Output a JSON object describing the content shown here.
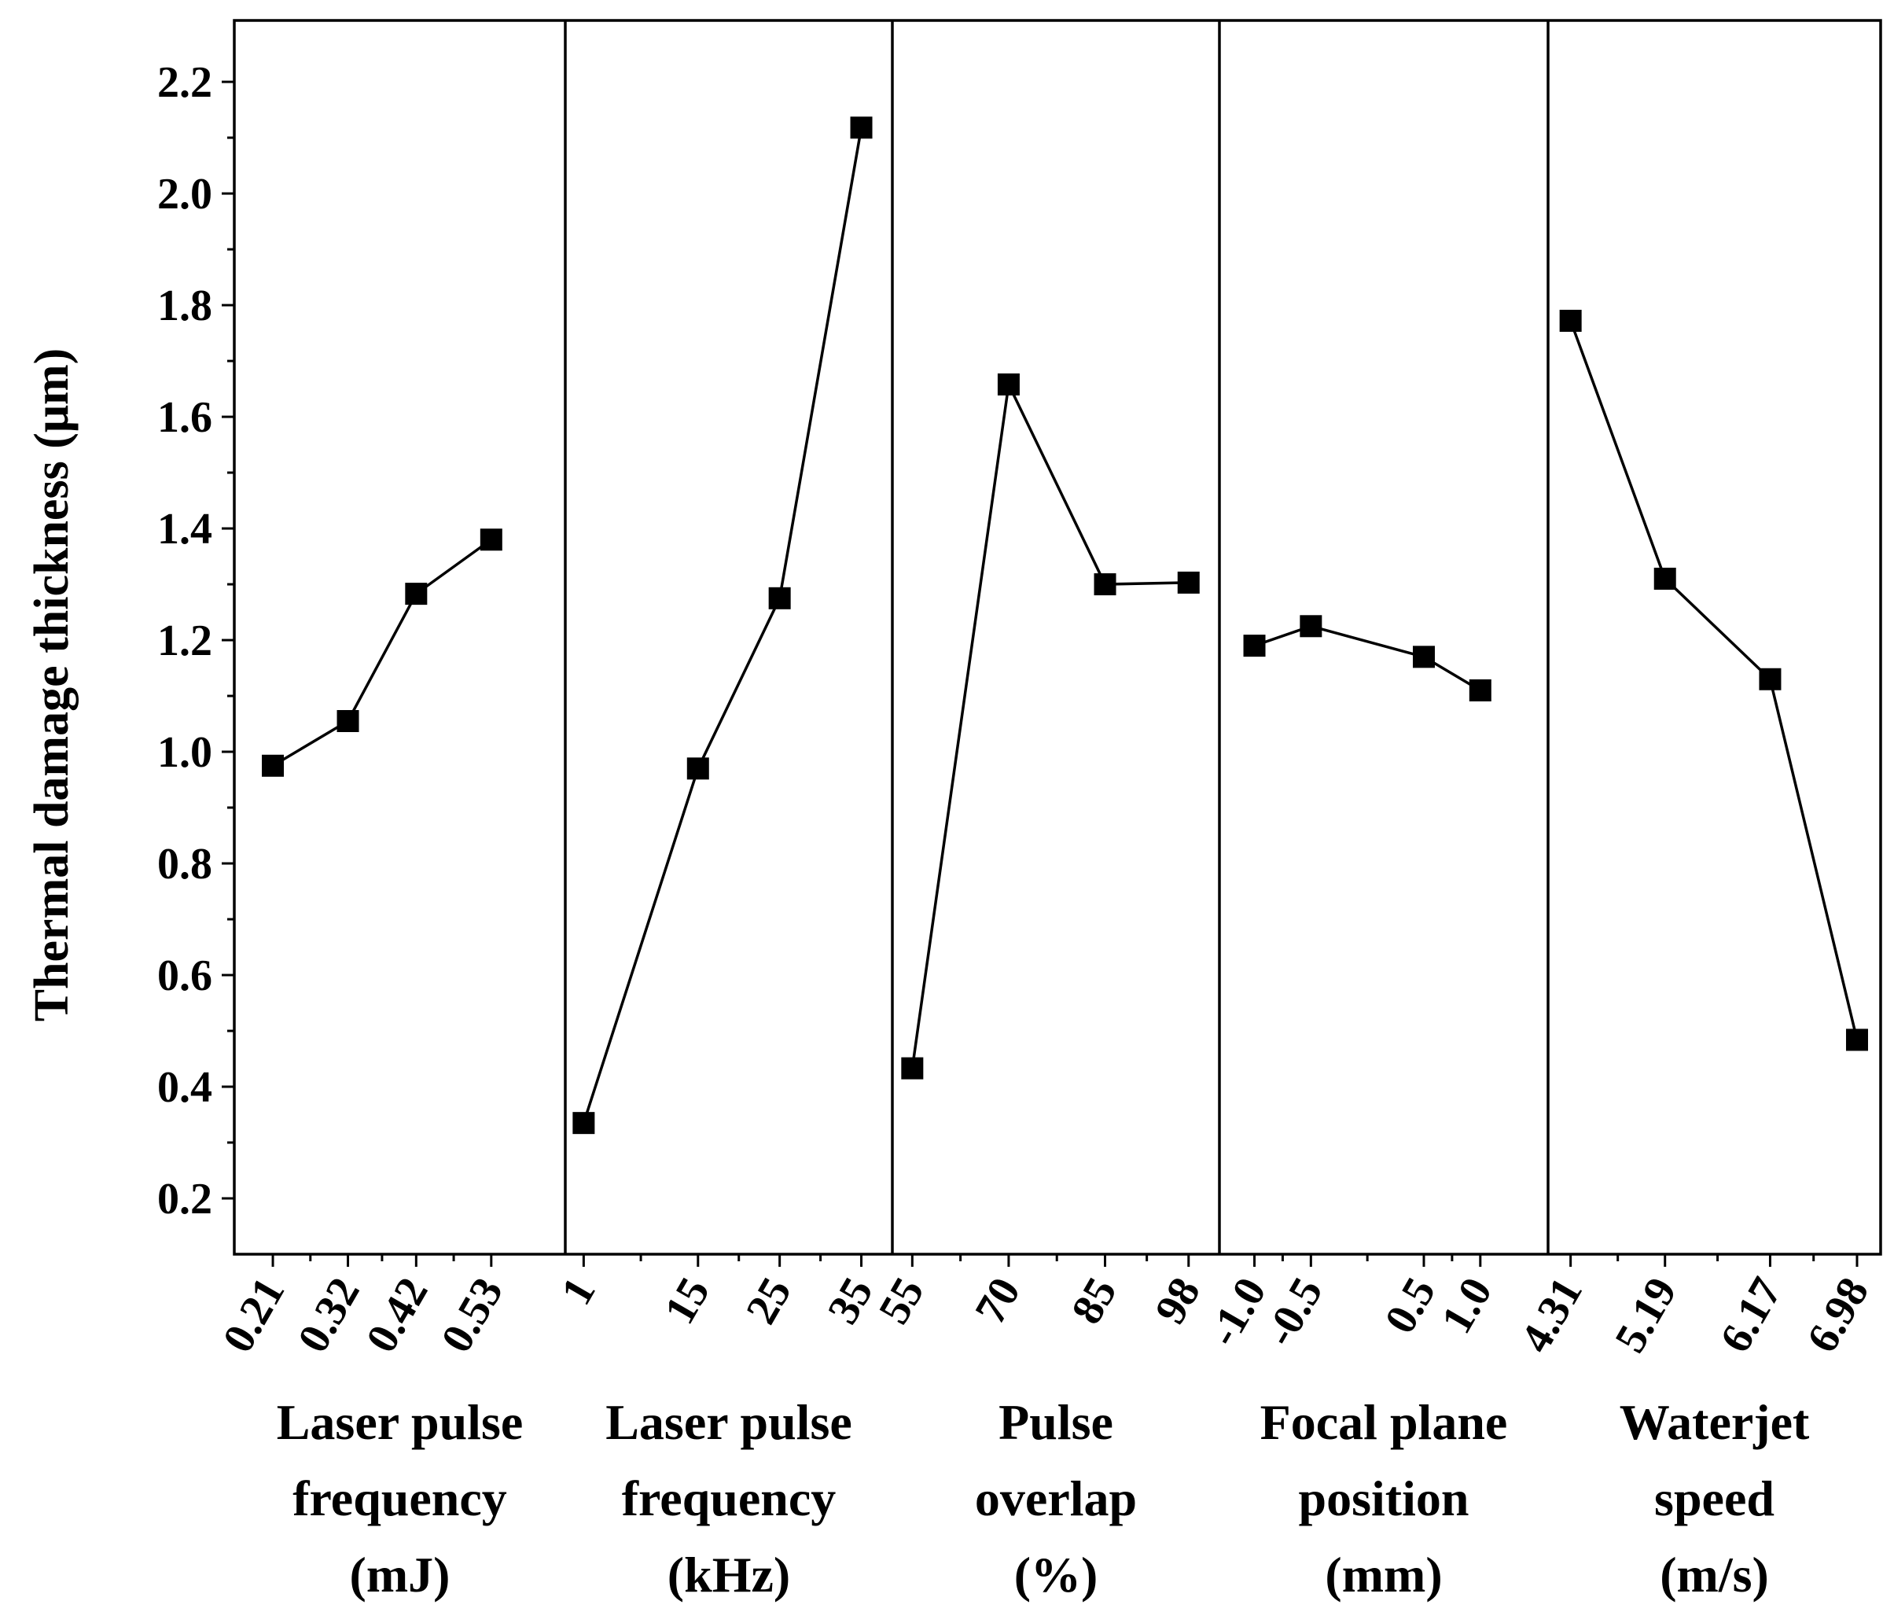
{
  "chart_data": {
    "type": "line",
    "title": "",
    "ylabel": "Thermal damage thickness (μm)",
    "ylim": [
      0.1,
      2.31
    ],
    "yticks": [
      0.2,
      0.4,
      0.6,
      0.8,
      1.0,
      1.2,
      1.4,
      1.6,
      1.8,
      2.0,
      2.2
    ],
    "ytick_labels": [
      "0.2",
      "0.4",
      "0.6",
      "0.8",
      "1.0",
      "1.2",
      "1.4",
      "1.6",
      "1.8",
      "2.0",
      "2.2"
    ],
    "marker": "square",
    "color": "#000000",
    "panels": [
      {
        "name": "laser-pulse-energy",
        "xlabel_lines": [
          "Laser pulse",
          "frequency",
          "(mJ)"
        ],
        "xlim": [
          0.1535,
          0.6385
        ],
        "x": [
          0.21,
          0.32,
          0.42,
          0.53
        ],
        "tick_labels": [
          "0.21",
          "0.32",
          "0.42",
          "0.53"
        ],
        "values": [
          0.975,
          1.055,
          1.283,
          1.38
        ]
      },
      {
        "name": "laser-pulse-frequency",
        "xlabel_lines": [
          "Laser pulse",
          "frequency",
          "(kHz)"
        ],
        "xlim": [
          -1.25,
          38.8
        ],
        "x": [
          1,
          15,
          25,
          35
        ],
        "tick_labels": [
          "1",
          "15",
          "25",
          "35"
        ],
        "values": [
          0.335,
          0.97,
          1.275,
          2.118
        ]
      },
      {
        "name": "pulse-overlap",
        "xlabel_lines": [
          "Pulse",
          "overlap",
          "(%)"
        ],
        "xlim": [
          51.9,
          102.8
        ],
        "x": [
          55,
          70,
          85,
          98
        ],
        "tick_labels": [
          "55",
          "70",
          "85",
          "98"
        ],
        "values": [
          0.433,
          1.658,
          1.3,
          1.303
        ]
      },
      {
        "name": "focal-plane-position",
        "xlabel_lines": [
          "Focal plane",
          "position",
          "(mm)"
        ],
        "xlim": [
          -1.31,
          1.6
        ],
        "x": [
          -1.0,
          -0.5,
          0.5,
          1.0
        ],
        "tick_labels": [
          "-1.0",
          "-0.5",
          "0.5",
          "1.0"
        ],
        "values": [
          1.19,
          1.225,
          1.17,
          1.11
        ]
      },
      {
        "name": "waterjet-speed",
        "xlabel_lines": [
          "Waterjet",
          "speed",
          "(m/s)"
        ],
        "xlim": [
          4.1,
          7.2
        ],
        "x": [
          4.31,
          5.19,
          6.17,
          6.98
        ],
        "tick_labels": [
          "4.31",
          "5.19",
          "6.17",
          "6.98"
        ],
        "values": [
          1.772,
          1.31,
          1.13,
          0.484
        ]
      }
    ]
  }
}
